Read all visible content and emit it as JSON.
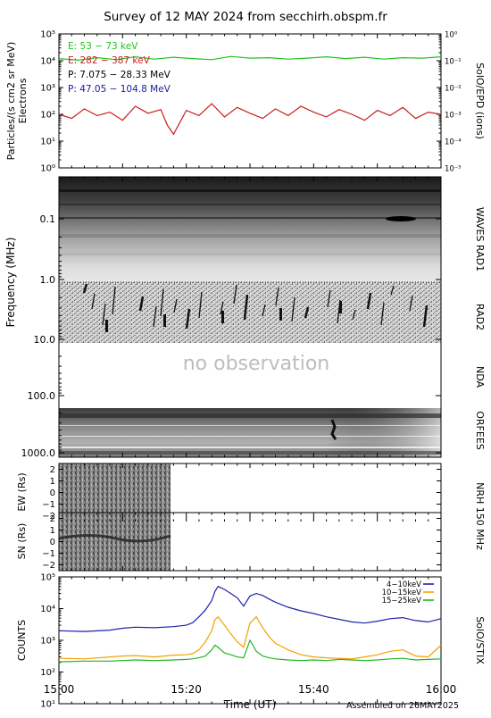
{
  "title": "Survey of 12 MAY 2024 from secchirh.obspm.fr",
  "footer": "Assembled on 26MAY2025",
  "chart_data": [
    {
      "id": "particles",
      "type": "line",
      "ylabel": "Particles/(s cm2 sr MeV)",
      "ylabel2": "Electrons",
      "right_label": "SolO/EPD (ions)",
      "yscale": "log",
      "ylim": [
        1,
        100000
      ],
      "y_ticks": [
        "10⁰",
        "10¹",
        "10²",
        "10³",
        "10⁴",
        "10⁵"
      ],
      "y2lim": [
        1e-05,
        1
      ],
      "y2_ticks": [
        "10⁻⁵",
        "10⁻⁴",
        "10⁻³",
        "10⁻²",
        "10⁻¹",
        "10⁰"
      ],
      "legend": [
        {
          "label": "E: 53 − 73 keV",
          "color": "#22c422"
        },
        {
          "label": "E: 282 − 387 keV",
          "color": "#c81e1e"
        },
        {
          "label": "P: 7.075 − 28.33 MeV",
          "color": "#000000"
        },
        {
          "label": "P: 47.05 − 104.8 MeV",
          "color": "#1a1aa0"
        }
      ],
      "series": [
        {
          "name": "E: 53 − 73 keV",
          "color": "#22c422",
          "x": [
            0,
            3,
            6,
            9,
            12,
            15,
            18,
            21,
            24,
            27,
            30,
            33,
            36,
            39,
            42,
            45,
            48,
            51,
            54,
            57,
            60
          ],
          "y": [
            12000,
            10500,
            13000,
            11000,
            14000,
            11500,
            13500,
            12000,
            11000,
            14500,
            12500,
            13000,
            11500,
            12500,
            14000,
            12000,
            13500,
            11500,
            13000,
            12500,
            14000
          ]
        },
        {
          "name": "E: 282 − 387 keV",
          "color": "#c81e1e",
          "x": [
            0,
            2,
            4,
            6,
            8,
            10,
            12,
            14,
            16,
            17,
            18,
            20,
            22,
            24,
            26,
            28,
            30,
            32,
            34,
            36,
            38,
            40,
            42,
            44,
            46,
            48,
            50,
            52,
            54,
            56,
            58,
            60
          ],
          "y": [
            100,
            70,
            160,
            90,
            120,
            60,
            200,
            110,
            150,
            40,
            18,
            140,
            90,
            250,
            80,
            180,
            110,
            70,
            160,
            90,
            200,
            120,
            80,
            150,
            100,
            60,
            140,
            90,
            180,
            70,
            120,
            100
          ]
        }
      ]
    },
    {
      "id": "radio",
      "type": "heatmap",
      "ylabel": "Frequency (MHz)",
      "yscale": "log",
      "ylim": [
        0.02,
        1000
      ],
      "y_ticks": [
        "0.1",
        "1.0",
        "10.0",
        "100.0",
        "1000.0"
      ],
      "annotation": "no observation",
      "right_labels": [
        "WAVES RAD1",
        "RAD2",
        "NDA",
        "ORFEES"
      ]
    },
    {
      "id": "nrh-ew",
      "type": "heatmap",
      "ylabel": "EW (Rs)",
      "ylim": [
        -2.5,
        2.5
      ],
      "y_ticks": [
        "−2",
        "−1",
        "0",
        "1",
        "2"
      ],
      "data_until_min": 15.5,
      "right_label": "NRH  150 MHz"
    },
    {
      "id": "nrh-sn",
      "type": "heatmap",
      "ylabel": "SN (Rs)",
      "ylim": [
        -2.5,
        2.5
      ],
      "y_ticks": [
        "−2",
        "−1",
        "0",
        "1",
        "2"
      ],
      "data_until_min": 15.5
    },
    {
      "id": "stix",
      "type": "line",
      "ylabel": "COUNTS",
      "xlabel": "Time (UT)",
      "yscale": "log",
      "ylim": [
        10,
        100000
      ],
      "y_ticks": [
        "10¹",
        "10²",
        "10³",
        "10⁴",
        "10⁵"
      ],
      "x_ticks": [
        "15:00",
        "15:20",
        "15:40",
        "16:00"
      ],
      "right_label": "SolO/STIX",
      "series": [
        {
          "name": "4−10keV",
          "color": "#1f1fae",
          "x": [
            0,
            4,
            8,
            10,
            12,
            15,
            18,
            20,
            21,
            22,
            23,
            24,
            24.5,
            25,
            26,
            27,
            28,
            29,
            30,
            31,
            32,
            33,
            34,
            36,
            38,
            40,
            42,
            44,
            46,
            48,
            50,
            52,
            54,
            56,
            58,
            60
          ],
          "y": [
            2000,
            1900,
            2100,
            2400,
            2600,
            2500,
            2700,
            3000,
            3600,
            5500,
            9000,
            18000,
            35000,
            50000,
            40000,
            30000,
            22000,
            12000,
            25000,
            30000,
            26000,
            20000,
            16000,
            11000,
            8500,
            7000,
            5500,
            4600,
            3800,
            3500,
            4000,
            4800,
            5200,
            4200,
            3800,
            4800
          ]
        },
        {
          "name": "10−15keV",
          "color": "#f5a000",
          "x": [
            0,
            4,
            8,
            10,
            12,
            15,
            18,
            20,
            21,
            22,
            23,
            24,
            24.5,
            25,
            26,
            27,
            28,
            29,
            30,
            31,
            32,
            33,
            34,
            36,
            38,
            40,
            42,
            44,
            46,
            48,
            50,
            52,
            54,
            56,
            58,
            60
          ],
          "y": [
            270,
            260,
            300,
            320,
            330,
            300,
            340,
            350,
            380,
            500,
            900,
            2000,
            4500,
            5500,
            3000,
            1600,
            900,
            600,
            3500,
            5500,
            2500,
            1300,
            800,
            500,
            350,
            300,
            280,
            270,
            260,
            300,
            350,
            450,
            500,
            320,
            300,
            700
          ]
        },
        {
          "name": "15−25keV",
          "color": "#22b622",
          "x": [
            0,
            4,
            8,
            10,
            12,
            15,
            18,
            20,
            21,
            22,
            23,
            24,
            24.5,
            25,
            26,
            27,
            28,
            29,
            30,
            31,
            32,
            33,
            34,
            36,
            38,
            40,
            42,
            44,
            46,
            48,
            50,
            52,
            54,
            56,
            58,
            60
          ],
          "y": [
            210,
            220,
            220,
            230,
            240,
            230,
            240,
            250,
            260,
            280,
            320,
            500,
            700,
            600,
            400,
            350,
            300,
            280,
            1000,
            450,
            320,
            280,
            260,
            240,
            230,
            240,
            230,
            250,
            240,
            230,
            240,
            260,
            270,
            240,
            250,
            260
          ]
        }
      ]
    }
  ]
}
